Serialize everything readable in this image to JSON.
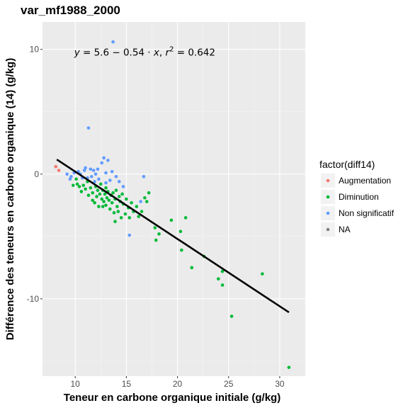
{
  "chart_data": {
    "type": "scatter",
    "title": "var_mf1988_2000",
    "xlabel": "Teneur en carbone organique initiale (g/kg)",
    "ylabel": "Différence des teneurs en carbone organique (14) (g/kg)",
    "xlim": [
      6.8,
      32.5
    ],
    "ylim": [
      -16.2,
      12.2
    ],
    "x_ticks": [
      10,
      15,
      20,
      25,
      30
    ],
    "y_ticks": [
      10,
      0,
      -10
    ],
    "x_tick_labels": [
      "10",
      "15",
      "20",
      "25",
      "30"
    ],
    "y_tick_labels": [
      "10",
      "0",
      "-10"
    ],
    "grid": true,
    "legend_title": "factor(diff14)",
    "legend_position": "right",
    "annotation": {
      "lhs": "y",
      "equals": " = 5.6 − 0.54 · ",
      "x": "x",
      "sep": ",  ",
      "r": "r",
      "exp": "2",
      "rhs": " = 0.642",
      "at": [
        16.8,
        9.8
      ]
    },
    "regression": {
      "intercept": 5.6,
      "slope": -0.54,
      "x_range": [
        8.2,
        30.9
      ],
      "color": "#000000"
    },
    "series": [
      {
        "name": "Augmentation",
        "color": "#F8766D",
        "points": [
          [
            8.1,
            0.6
          ],
          [
            8.4,
            0.3
          ]
        ]
      },
      {
        "name": "Diminution",
        "color": "#00BA38",
        "points": [
          [
            9.8,
            -0.9
          ],
          [
            10.1,
            -0.4
          ],
          [
            10.2,
            -0.8
          ],
          [
            10.4,
            -1.0
          ],
          [
            10.6,
            -1.4
          ],
          [
            10.8,
            -0.9
          ],
          [
            11.0,
            -1.2
          ],
          [
            11.2,
            -0.6
          ],
          [
            11.3,
            -1.7
          ],
          [
            11.5,
            -1.1
          ],
          [
            11.7,
            -1.5
          ],
          [
            11.9,
            -2.3
          ],
          [
            12.0,
            -1.0
          ],
          [
            12.1,
            -1.8
          ],
          [
            12.2,
            -1.3
          ],
          [
            12.3,
            -2.6
          ],
          [
            12.4,
            -1.6
          ],
          [
            12.5,
            -0.8
          ],
          [
            12.6,
            -2.0
          ],
          [
            12.7,
            -1.3
          ],
          [
            12.8,
            -2.2
          ],
          [
            12.9,
            -1.6
          ],
          [
            13.0,
            -1.1
          ],
          [
            13.0,
            -2.5
          ],
          [
            13.1,
            -1.9
          ],
          [
            13.2,
            -1.4
          ],
          [
            13.3,
            -2.1
          ],
          [
            13.4,
            -2.8
          ],
          [
            13.5,
            -1.7
          ],
          [
            13.6,
            -2.3
          ],
          [
            13.7,
            -1.5
          ],
          [
            13.8,
            -3.1
          ],
          [
            13.9,
            -2.0
          ],
          [
            14.0,
            -1.3
          ],
          [
            14.1,
            -2.6
          ],
          [
            14.2,
            -3.0
          ],
          [
            14.3,
            -1.8
          ],
          [
            14.4,
            -2.2
          ],
          [
            14.5,
            -3.5
          ],
          [
            14.6,
            -1.6
          ],
          [
            14.7,
            -2.4
          ],
          [
            14.9,
            -3.2
          ],
          [
            15.0,
            -2.0
          ],
          [
            15.2,
            -2.7
          ],
          [
            15.3,
            -3.5
          ],
          [
            15.5,
            -2.3
          ],
          [
            15.7,
            -3.0
          ],
          [
            16.0,
            -2.6
          ],
          [
            16.2,
            -3.4
          ],
          [
            16.5,
            -3.0
          ],
          [
            16.8,
            -1.9
          ],
          [
            17.0,
            -2.2
          ],
          [
            17.2,
            -1.5
          ],
          [
            13.9,
            -3.8
          ],
          [
            12.7,
            -2.6
          ],
          [
            11.7,
            -2.1
          ],
          [
            17.9,
            -5.3
          ],
          [
            18.2,
            -4.8
          ],
          [
            17.8,
            -4.3
          ],
          [
            19.4,
            -3.7
          ],
          [
            20.3,
            -4.6
          ],
          [
            20.4,
            -6.1
          ],
          [
            20.8,
            -3.5
          ],
          [
            21.4,
            -7.5
          ],
          [
            22.6,
            -6.6
          ],
          [
            24.0,
            -8.4
          ],
          [
            24.4,
            -7.8
          ],
          [
            24.4,
            -8.9
          ],
          [
            25.3,
            -11.4
          ],
          [
            28.3,
            -8.0
          ],
          [
            30.9,
            -15.5
          ]
        ]
      },
      {
        "name": "Non significatif",
        "color": "#619CFF",
        "points": [
          [
            9.2,
            0.0
          ],
          [
            9.6,
            -0.2
          ],
          [
            9.9,
            0.1
          ],
          [
            10.3,
            0.2
          ],
          [
            10.5,
            0.0
          ],
          [
            10.7,
            -0.3
          ],
          [
            10.9,
            0.3
          ],
          [
            11.0,
            0.5
          ],
          [
            11.2,
            -0.3
          ],
          [
            11.3,
            3.7
          ],
          [
            11.5,
            0.4
          ],
          [
            11.6,
            -0.2
          ],
          [
            11.8,
            0.3
          ],
          [
            12.0,
            0.0
          ],
          [
            12.2,
            0.4
          ],
          [
            12.3,
            -0.4
          ],
          [
            12.6,
            0.9
          ],
          [
            12.8,
            1.3
          ],
          [
            13.0,
            0.1
          ],
          [
            13.2,
            1.1
          ],
          [
            13.4,
            -0.5
          ],
          [
            13.6,
            0.2
          ],
          [
            13.7,
            10.6
          ],
          [
            14.0,
            -0.2
          ],
          [
            14.3,
            -0.6
          ],
          [
            14.7,
            -1.0
          ],
          [
            15.3,
            -4.9
          ],
          [
            16.4,
            -2.2
          ],
          [
            16.7,
            -0.2
          ],
          [
            9.5,
            -0.4
          ],
          [
            11.9,
            -0.6
          ],
          [
            13.0,
            -0.7
          ]
        ]
      },
      {
        "name": "NA",
        "color": "#7F7F7F",
        "points": []
      }
    ]
  }
}
